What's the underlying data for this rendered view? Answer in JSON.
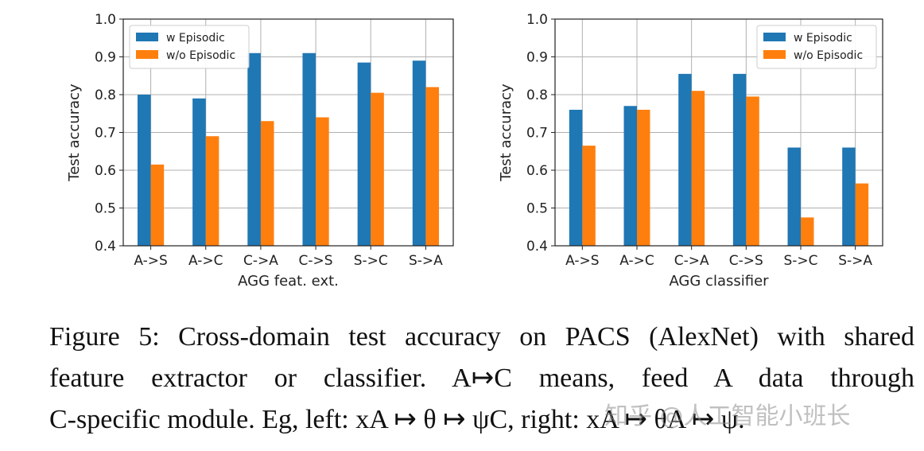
{
  "chart_data": [
    {
      "type": "bar",
      "categories": [
        "A->S",
        "A->C",
        "C->A",
        "C->S",
        "S->C",
        "S->A"
      ],
      "series": [
        {
          "name": "w Episodic",
          "values": [
            0.8,
            0.79,
            0.91,
            0.91,
            0.885,
            0.89
          ]
        },
        {
          "name": "w/o Episodic",
          "values": [
            0.615,
            0.69,
            0.73,
            0.74,
            0.805,
            0.82
          ]
        }
      ],
      "xlabel": "AGG feat. ext.",
      "ylabel": "Test accuracy",
      "ylim": [
        0.4,
        1.0
      ],
      "yticks": [
        "0.4",
        "0.5",
        "0.6",
        "0.7",
        "0.8",
        "0.9",
        "1.0"
      ],
      "grid": true,
      "legend_position": "top-left"
    },
    {
      "type": "bar",
      "categories": [
        "A->S",
        "A->C",
        "C->A",
        "C->S",
        "S->C",
        "S->A"
      ],
      "series": [
        {
          "name": "w Episodic",
          "values": [
            0.76,
            0.77,
            0.855,
            0.855,
            0.66,
            0.66
          ]
        },
        {
          "name": "w/o Episodic",
          "values": [
            0.665,
            0.76,
            0.81,
            0.795,
            0.475,
            0.565
          ]
        }
      ],
      "xlabel": "AGG classifier",
      "ylabel": "Test accuracy",
      "ylim": [
        0.4,
        1.0
      ],
      "yticks": [
        "0.4",
        "0.5",
        "0.6",
        "0.7",
        "0.8",
        "0.9",
        "1.0"
      ],
      "grid": true,
      "legend_position": "top-right"
    }
  ],
  "colors": {
    "w Episodic": "#1f77b4",
    "w/o Episodic": "#ff7f0e"
  },
  "caption": {
    "line1": "Figure 5: Cross-domain test accuracy on PACS (AlexNet) with shared",
    "line2": "feature extractor or classifier.  A↦C means, feed A data through",
    "line3": "C-specific module. Eg, left: xA ↦ θ ↦ ψC, right: xA ↦ θA ↦ ψ."
  },
  "watermark": "知乎 @人工智能小班长"
}
